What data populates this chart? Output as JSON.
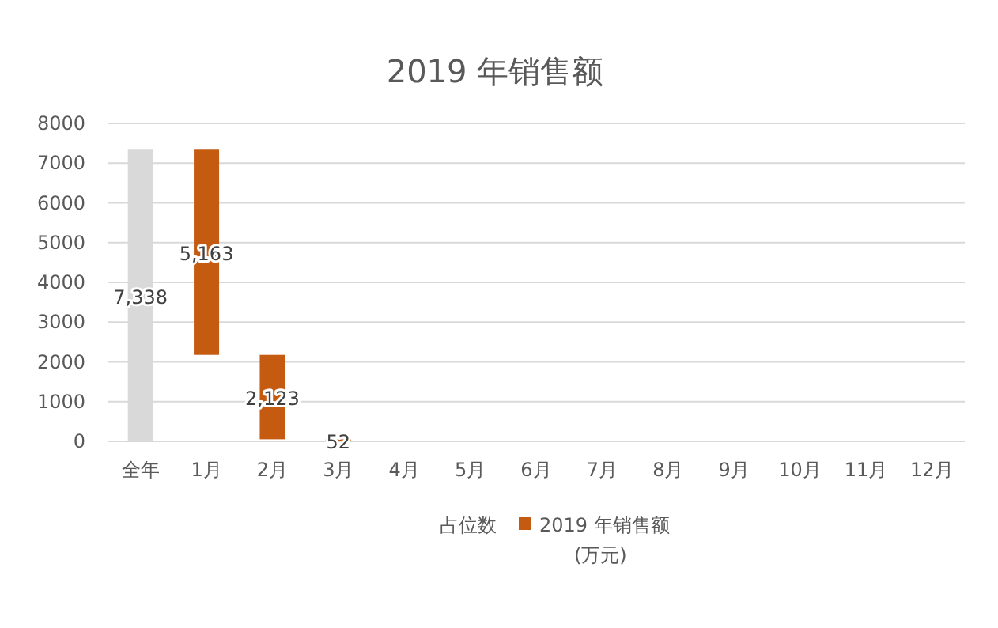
{
  "chart_data": {
    "type": "bar",
    "title": "2019 年销售额",
    "categories": [
      "全年",
      "1月",
      "2月",
      "3月",
      "4月",
      "5月",
      "6月",
      "7月",
      "8月",
      "9月",
      "10月",
      "11月",
      "12月"
    ],
    "series": [
      {
        "name": "占位数",
        "color": null,
        "values": [
          null,
          null,
          null,
          null,
          null,
          null,
          null,
          null,
          null,
          null,
          null,
          null,
          null
        ]
      },
      {
        "name": "2019 年销售额\n(万元)",
        "color": "#c55a11",
        "colors": [
          "#d9d9d9",
          "#c55a11",
          "#c55a11",
          "#c55a11",
          null,
          null,
          null,
          null,
          null,
          null,
          null,
          null,
          null
        ],
        "values": [
          7338,
          5163,
          2123,
          52,
          null,
          null,
          null,
          null,
          null,
          null,
          null,
          null,
          null
        ],
        "base": [
          0,
          2175,
          52,
          0,
          null,
          null,
          null,
          null,
          null,
          null,
          null,
          null,
          null
        ],
        "value_labels": [
          "7,338",
          "5,163",
          "2,123",
          "52",
          null,
          null,
          null,
          null,
          null,
          null,
          null,
          null,
          null
        ]
      }
    ],
    "ylim": [
      0,
      8000
    ],
    "yticks": [
      0,
      1000,
      2000,
      3000,
      4000,
      5000,
      6000,
      7000,
      8000
    ],
    "grid": "y",
    "legend": "bottom"
  }
}
